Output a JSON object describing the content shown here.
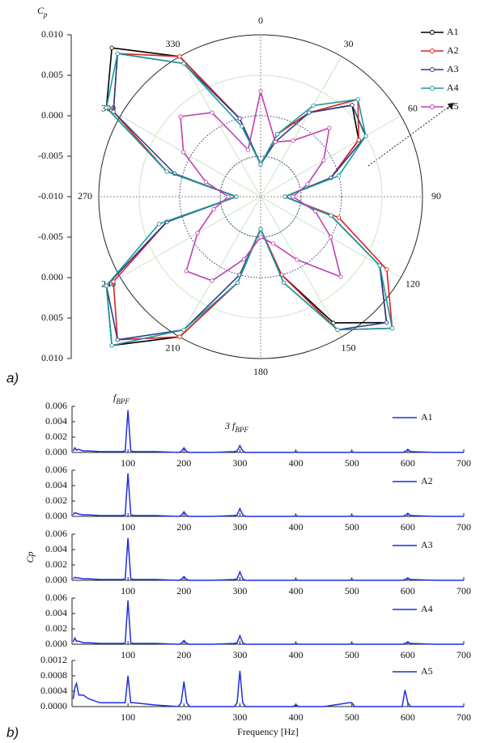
{
  "chart_data": [
    {
      "type": "polar",
      "panel_label": "a)",
      "r_label": {
        "base": "C",
        "sub": "p"
      },
      "rlim": [
        -0.01,
        0.01
      ],
      "rticks": [
        {
          "value": -0.01,
          "label": "-0.010"
        },
        -0.005,
        {
          "value": 0,
          "label": "0.000"
        },
        0.005,
        {
          "value": 0.01,
          "label": "0.010"
        }
      ],
      "angle_ticks": [
        0,
        30,
        60,
        90,
        120,
        150,
        180,
        210,
        240,
        270,
        300,
        330
      ],
      "theta": [
        0,
        15,
        30,
        45,
        60,
        75,
        90,
        105,
        120,
        135,
        150,
        165,
        180,
        195,
        210,
        225,
        240,
        255,
        270,
        285,
        300,
        315,
        330,
        345
      ],
      "grid": true,
      "legend": "upper right",
      "series": [
        {
          "name": "A1",
          "color": "#000000",
          "values": [
            -0.006,
            -0.002,
            0.002,
            0.006,
            0.004,
            -0.001,
            -0.007,
            -0.001,
            0.007,
            0.012,
            0.008,
            0.0,
            -0.006,
            0.001,
            0.01,
            0.016,
            0.012,
            0.002,
            -0.007,
            0.002,
            0.012,
            0.016,
            0.01,
            0.0
          ]
        },
        {
          "name": "A2",
          "color": "#e02020",
          "values": [
            -0.006,
            -0.002,
            0.002,
            0.007,
            0.004,
            -0.001,
            -0.007,
            0.0,
            0.008,
            0.013,
            0.009,
            0.0,
            -0.006,
            0.001,
            0.01,
            0.015,
            0.011,
            0.002,
            -0.007,
            0.002,
            0.011,
            0.015,
            0.01,
            0.0
          ]
        },
        {
          "name": "A3",
          "color": "#2c3e8c",
          "values": [
            -0.006,
            -0.003,
            0.002,
            0.006,
            0.005,
            -0.001,
            -0.007,
            -0.001,
            0.007,
            0.012,
            0.009,
            0.001,
            -0.006,
            0.0,
            0.009,
            0.015,
            0.012,
            0.002,
            -0.007,
            0.001,
            0.011,
            0.015,
            0.009,
            0.0
          ]
        },
        {
          "name": "A4",
          "color": "#1a9a9a",
          "values": [
            -0.006,
            -0.002,
            0.003,
            0.007,
            0.005,
            0.0,
            -0.007,
            -0.001,
            0.007,
            0.013,
            0.009,
            0.001,
            -0.006,
            0.001,
            0.009,
            0.016,
            0.012,
            0.003,
            -0.007,
            0.002,
            0.012,
            0.015,
            0.009,
            -0.001
          ]
        },
        {
          "name": "A5",
          "color": "#c040b0",
          "values": [
            0.003,
            -0.003,
            -0.002,
            0.002,
            -0.001,
            -0.004,
            -0.006,
            -0.003,
            0.0,
            0.004,
            -0.001,
            -0.004,
            -0.005,
            -0.002,
            0.002,
            0.003,
            -0.001,
            -0.004,
            -0.006,
            -0.003,
            0.001,
            0.004,
            0.002,
            -0.004
          ]
        }
      ]
    },
    {
      "type": "line",
      "xlim": [
        0,
        700
      ],
      "xticks": [
        100,
        200,
        300,
        400,
        500,
        600,
        700
      ],
      "ylim": [
        0,
        0.006
      ],
      "yticks": [
        {
          "value": 0,
          "label": "0.000"
        },
        0.002,
        0.004,
        0.006
      ],
      "annotations": [
        {
          "base": "f",
          "sub": "BPF"
        },
        {
          "base": "3 f",
          "sub": "BPF"
        }
      ],
      "x": [
        2,
        5,
        8,
        12,
        20,
        30,
        50,
        70,
        90,
        95,
        100,
        105,
        110,
        150,
        190,
        195,
        200,
        205,
        210,
        250,
        290,
        295,
        300,
        305,
        310,
        350,
        395,
        400,
        405,
        450,
        495,
        500,
        505,
        550,
        590,
        595,
        600,
        605,
        650,
        700
      ],
      "series": [
        {
          "name": "A1",
          "color": "#1f2fe0",
          "values": [
            0.0002,
            0.0006,
            0.0003,
            0.0004,
            0.0002,
            0.0002,
            0.0001,
            0.0001,
            0.0001,
            0.0002,
            0.0055,
            0.0002,
            0.0001,
            0.0001,
            0,
            0.0001,
            0.0006,
            0.0001,
            0,
            0,
            0.0001,
            0.0002,
            0.0009,
            0.0002,
            0,
            0,
            0,
            0.0001,
            0,
            0,
            0,
            0.0001,
            0,
            0,
            0,
            0.0001,
            0.0004,
            0.0001,
            0,
            0
          ]
        }
      ]
    },
    {
      "type": "line",
      "xlim": [
        0,
        700
      ],
      "xticks": [
        100,
        200,
        300,
        400,
        500,
        600,
        700
      ],
      "ylim": [
        0,
        0.006
      ],
      "yticks": [
        {
          "value": 0,
          "label": "0.000"
        },
        0.002,
        0.004,
        0.006
      ],
      "x": [
        2,
        5,
        8,
        12,
        20,
        30,
        50,
        70,
        90,
        95,
        100,
        105,
        110,
        150,
        190,
        195,
        200,
        205,
        210,
        250,
        290,
        295,
        300,
        305,
        310,
        350,
        395,
        400,
        405,
        450,
        495,
        500,
        505,
        550,
        590,
        595,
        600,
        605,
        650,
        700
      ],
      "series": [
        {
          "name": "A2",
          "color": "#1f2fe0",
          "values": [
            0.0002,
            0.0005,
            0.0004,
            0.0003,
            0.0002,
            0.0002,
            0.0001,
            0.0001,
            0.0001,
            0.0002,
            0.0056,
            0.0002,
            0.0001,
            0.0001,
            0,
            0.0001,
            0.0006,
            0.0001,
            0,
            0,
            0.0001,
            0.0002,
            0.001,
            0.0002,
            0,
            0,
            0,
            0.0001,
            0,
            0,
            0,
            0.0001,
            0,
            0,
            0,
            0.0001,
            0.0004,
            0.0001,
            0,
            0
          ]
        }
      ]
    },
    {
      "type": "line",
      "xlim": [
        0,
        700
      ],
      "xticks": [
        100,
        200,
        300,
        400,
        500,
        600,
        700
      ],
      "ylim": [
        0,
        0.006
      ],
      "yticks": [
        {
          "value": 0,
          "label": "0.000"
        },
        0.002,
        0.004,
        0.006
      ],
      "ylabel": "Cp",
      "x": [
        2,
        5,
        8,
        12,
        20,
        30,
        50,
        70,
        90,
        95,
        100,
        105,
        110,
        150,
        190,
        195,
        200,
        205,
        210,
        250,
        290,
        295,
        300,
        305,
        310,
        350,
        395,
        400,
        405,
        450,
        495,
        500,
        505,
        550,
        590,
        595,
        600,
        605,
        650,
        700
      ],
      "series": [
        {
          "name": "A3",
          "color": "#1f2fe0",
          "values": [
            0.0002,
            0.0004,
            0.0003,
            0.0003,
            0.0002,
            0.0002,
            0.0001,
            0.0001,
            0.0001,
            0.0002,
            0.0055,
            0.0002,
            0.0001,
            0.0001,
            0,
            0.0001,
            0.0005,
            0.0001,
            0,
            0,
            0.0001,
            0.0002,
            0.0011,
            0.0002,
            0,
            0,
            0,
            0.0001,
            0,
            0,
            0,
            0.0001,
            0,
            0,
            0,
            0.0001,
            0.0003,
            0.0001,
            0,
            0
          ]
        }
      ]
    },
    {
      "type": "line",
      "xlim": [
        0,
        700
      ],
      "xticks": [
        100,
        200,
        300,
        400,
        500,
        600,
        700
      ],
      "ylim": [
        0,
        0.006
      ],
      "yticks": [
        {
          "value": 0,
          "label": "0.000"
        },
        0.002,
        0.004,
        0.006
      ],
      "x": [
        2,
        5,
        8,
        12,
        20,
        30,
        50,
        70,
        90,
        95,
        100,
        105,
        110,
        150,
        190,
        195,
        200,
        205,
        210,
        250,
        290,
        295,
        300,
        305,
        310,
        350,
        395,
        400,
        405,
        450,
        495,
        500,
        505,
        550,
        590,
        595,
        600,
        605,
        650,
        700
      ],
      "series": [
        {
          "name": "A4",
          "color": "#1f2fe0",
          "values": [
            0.0003,
            0.0008,
            0.0004,
            0.0004,
            0.0002,
            0.0002,
            0.0001,
            0.0001,
            0.0001,
            0.0002,
            0.0057,
            0.0002,
            0.0001,
            0.0001,
            0,
            0.0001,
            0.0005,
            0.0001,
            0,
            0,
            0.0001,
            0.0002,
            0.0011,
            0.0002,
            0,
            0,
            0,
            0.0001,
            0,
            0,
            0,
            0.0001,
            0,
            0,
            0,
            0.0001,
            0.0003,
            0.0001,
            0,
            0
          ]
        }
      ]
    },
    {
      "type": "line",
      "panel_label": "b)",
      "xlabel": "Frequency [Hz]",
      "xlim": [
        0,
        700
      ],
      "xticks": [
        100,
        200,
        300,
        400,
        500,
        600,
        700
      ],
      "ylim": [
        0,
        0.0012
      ],
      "yticks": [
        {
          "value": 0,
          "label": "0.0000"
        },
        0.0004,
        0.0008,
        0.0012
      ],
      "x": [
        2,
        5,
        8,
        12,
        20,
        30,
        50,
        70,
        90,
        95,
        100,
        105,
        110,
        150,
        190,
        195,
        200,
        205,
        210,
        250,
        290,
        295,
        300,
        305,
        310,
        350,
        395,
        400,
        405,
        450,
        495,
        500,
        505,
        550,
        590,
        595,
        600,
        605,
        650,
        700
      ],
      "series": [
        {
          "name": "A5",
          "color": "#1f2fe0",
          "values": [
            0.0002,
            0.0005,
            0.0006,
            0.0003,
            0.0003,
            0.0002,
            0.0001,
            0.0001,
            0.0001,
            0.0001,
            0.0008,
            0.0001,
            0.0001,
            4e-05,
            0,
            0.0001,
            0.00065,
            0.0001,
            0,
            0,
            0,
            0.0001,
            0.00093,
            0.0001,
            0,
            0,
            0,
            5e-05,
            0,
            0,
            0.0001,
            0.0001,
            0,
            0,
            0,
            0.00043,
            0.0001,
            0,
            0,
            0
          ]
        }
      ]
    }
  ]
}
